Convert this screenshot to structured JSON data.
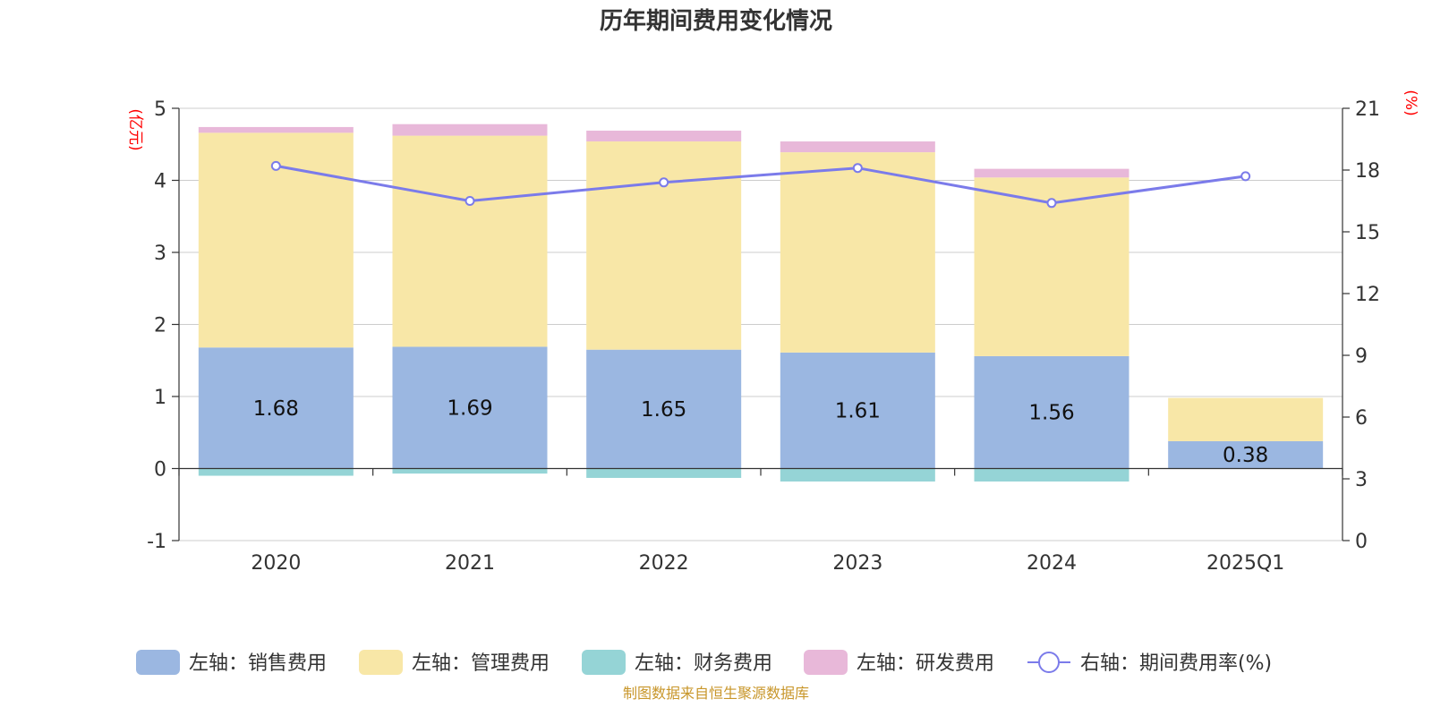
{
  "colors": {
    "sales": "#9bb7e1",
    "admin": "#f8e7a7",
    "finance": "#95d4d6",
    "rnd": "#e8b8d9",
    "rate": "#7b7bea",
    "axis_unit": "#ff0000",
    "source": "#c8962a"
  },
  "chart_data": {
    "type": "bar",
    "stacked": true,
    "title": "历年期间费用变化情况",
    "categories": [
      "2020",
      "2021",
      "2022",
      "2023",
      "2024",
      "2025Q1"
    ],
    "left_axis": {
      "unit": "(亿元)",
      "ylim": [
        -1,
        5
      ],
      "ticks": [
        "5",
        "4",
        "3",
        "2",
        "1",
        "0",
        "-1"
      ]
    },
    "right_axis": {
      "unit": "(%)",
      "ylim": [
        0,
        21
      ],
      "ticks": [
        "21",
        "18",
        "15",
        "12",
        "9",
        "6",
        "3",
        "0"
      ]
    },
    "grid": true,
    "legend_position": "bottom",
    "series": [
      {
        "name": "左轴：销售费用",
        "axis": "left",
        "color_key": "sales",
        "values": [
          1.68,
          1.69,
          1.65,
          1.61,
          1.56,
          0.38
        ],
        "data_labels": [
          "1.68",
          "1.69",
          "1.65",
          "1.61",
          "1.56",
          "0.38"
        ]
      },
      {
        "name": "左轴：管理费用",
        "axis": "left",
        "color_key": "admin",
        "values": [
          2.98,
          2.93,
          2.89,
          2.78,
          2.48,
          0.6
        ]
      },
      {
        "name": "左轴：财务费用",
        "axis": "left",
        "color_key": "finance",
        "values": [
          -0.1,
          -0.07,
          -0.13,
          -0.18,
          -0.18,
          0
        ]
      },
      {
        "name": "左轴：研发费用",
        "axis": "left",
        "color_key": "rnd",
        "values": [
          0.08,
          0.16,
          0.15,
          0.15,
          0.12,
          0
        ]
      },
      {
        "name": "右轴：期间费用率(%)",
        "axis": "right",
        "type": "line",
        "color_key": "rate",
        "values": [
          18.2,
          16.5,
          17.4,
          18.1,
          16.4,
          17.7
        ]
      }
    ]
  },
  "source": "制图数据来自恒生聚源数据库"
}
